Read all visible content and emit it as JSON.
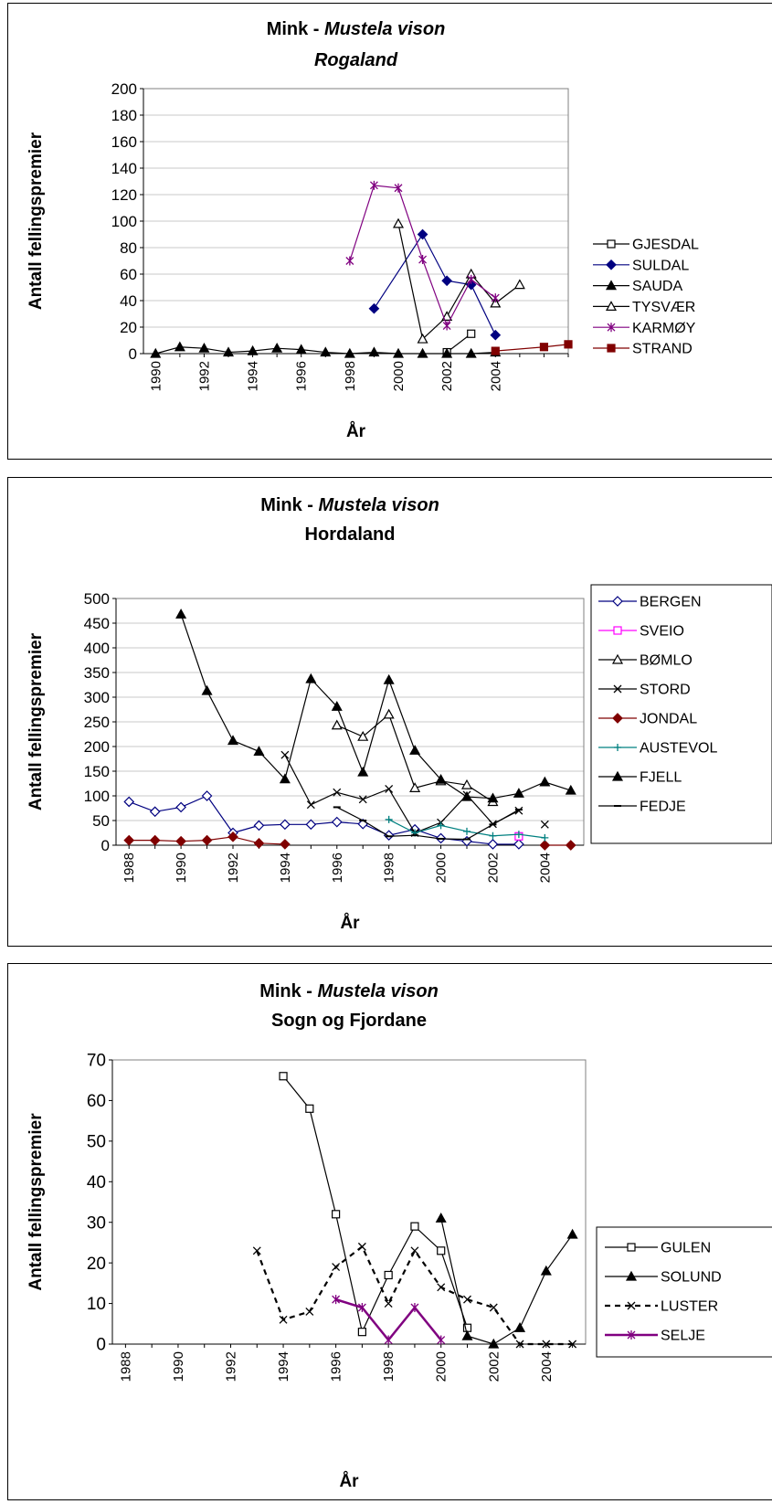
{
  "chart_data": [
    {
      "type": "line",
      "title_prefix": "Mink - ",
      "title_species": "Mustela vison",
      "subtitle": "Rogaland",
      "subtitle_italic": true,
      "xlabel": "År",
      "ylabel": "Antall fellingspremier",
      "xlim": [
        1989.5,
        2007
      ],
      "ylim": [
        0,
        200
      ],
      "yticks": [
        0,
        20,
        40,
        60,
        80,
        100,
        120,
        140,
        160,
        180,
        200
      ],
      "xticks": [
        1990,
        1992,
        1994,
        1996,
        1998,
        2000,
        2002,
        2004
      ],
      "grid": true,
      "legend_position": "right",
      "series": [
        {
          "name": "GJESDAL",
          "color": "#000000",
          "marker": "square-open",
          "x": [
            2002,
            2003
          ],
          "y": [
            1,
            15
          ]
        },
        {
          "name": "SULDAL",
          "color": "#000080",
          "marker": "diamond-filled",
          "x": [
            1999,
            2001,
            2002,
            2003,
            2004
          ],
          "y": [
            34,
            90,
            55,
            52,
            14
          ]
        },
        {
          "name": "SAUDA",
          "color": "#000000",
          "marker": "triangle-filled",
          "x": [
            1990,
            1991,
            1992,
            1993,
            1994,
            1995,
            1996,
            1997,
            1998,
            1999,
            2000,
            2001,
            2002,
            2003,
            2004
          ],
          "y": [
            0,
            5,
            4,
            1,
            2,
            4,
            3,
            1,
            0,
            1,
            0,
            0,
            0,
            0,
            1
          ]
        },
        {
          "name": "TYSVÆR",
          "color": "#000000",
          "marker": "triangle-open",
          "x": [
            2000,
            2001,
            2002,
            2003,
            2004,
            2005
          ],
          "y": [
            98,
            11,
            28,
            60,
            38,
            52
          ]
        },
        {
          "name": "KARMØY",
          "color": "#800080",
          "marker": "asterisk",
          "x": [
            1998,
            1999,
            2000,
            2001,
            2002,
            2003,
            2004
          ],
          "y": [
            70,
            127,
            125,
            71,
            21,
            56,
            42
          ]
        },
        {
          "name": "STRAND",
          "color": "#800000",
          "marker": "square-filled",
          "x": [
            2004,
            2006,
            2007
          ],
          "y": [
            2,
            5,
            7
          ]
        }
      ]
    },
    {
      "type": "line",
      "title_prefix": "Mink - ",
      "title_species": "Mustela vison",
      "subtitle": "Hordaland",
      "subtitle_italic": false,
      "xlabel": "År",
      "ylabel": "Antall fellingspremier",
      "xlim": [
        1987.5,
        2005.5
      ],
      "ylim": [
        0,
        500
      ],
      "yticks": [
        0,
        50,
        100,
        150,
        200,
        250,
        300,
        350,
        400,
        450,
        500
      ],
      "xticks": [
        1988,
        1990,
        1992,
        1994,
        1996,
        1998,
        2000,
        2002,
        2004
      ],
      "grid": true,
      "legend_position": "right",
      "series": [
        {
          "name": "BERGEN",
          "color": "#000080",
          "marker": "diamond-open",
          "x": [
            1988,
            1989,
            1990,
            1991,
            1992,
            1993,
            1994,
            1995,
            1996,
            1997,
            1998,
            1999,
            2000,
            2001,
            2002,
            2003
          ],
          "y": [
            88,
            68,
            77,
            100,
            25,
            40,
            42,
            42,
            47,
            43,
            20,
            32,
            14,
            8,
            2,
            2
          ]
        },
        {
          "name": "SVEIO",
          "color": "#FF00FF",
          "marker": "square-open",
          "x": [
            2003
          ],
          "y": [
            18
          ]
        },
        {
          "name": "BØMLO",
          "color": "#000000",
          "marker": "triangle-open",
          "x": [
            1996,
            1997,
            1998,
            1999,
            2000,
            2001,
            2002
          ],
          "y": [
            243,
            220,
            265,
            116,
            130,
            122,
            88
          ]
        },
        {
          "name": "STORD",
          "color": "#000000",
          "marker": "x",
          "x": [
            1994,
            1995,
            1996,
            1997,
            1998,
            1999,
            2000,
            2001,
            2002,
            2003
          ],
          "y": [
            183,
            82,
            107,
            93,
            114,
            25,
            46,
            102,
            43,
            70
          ],
          "x2": [
            2004
          ],
          "y2": [
            42
          ]
        },
        {
          "name": "JONDAL",
          "color": "#800000",
          "marker": "diamond-filled",
          "x": [
            1988,
            1989,
            1990,
            1991,
            1992,
            1993,
            1994
          ],
          "y": [
            10,
            10,
            8,
            10,
            17,
            4,
            2
          ],
          "x2": [
            2004,
            2005
          ],
          "y2": [
            0,
            0
          ]
        },
        {
          "name": "AUSTEVOL",
          "color": "#008080",
          "marker": "plus",
          "x": [
            1998,
            1999,
            2000,
            2001,
            2002,
            2003,
            2004
          ],
          "y": [
            52,
            25,
            40,
            28,
            19,
            22,
            15
          ]
        },
        {
          "name": "FJELL",
          "color": "#000000",
          "marker": "triangle-filled",
          "x": [
            1990,
            1991,
            1992,
            1993,
            1994,
            1995,
            1996,
            1997,
            1998,
            1999,
            2000,
            2001,
            2002,
            2003,
            2004,
            2005
          ],
          "y": [
            468,
            313,
            212,
            190,
            134,
            337,
            281,
            148,
            335,
            192,
            133,
            98,
            95,
            105,
            128,
            111
          ]
        },
        {
          "name": "FEDJE",
          "color": "#000000",
          "marker": "dash",
          "x": [
            1996,
            1997,
            1998,
            1999,
            2000,
            2001,
            2002,
            2003
          ],
          "y": [
            77,
            50,
            18,
            20,
            13,
            12,
            42,
            72
          ]
        }
      ]
    },
    {
      "type": "line",
      "title_prefix": "Mink - ",
      "title_species": "Mustela vison",
      "subtitle": "Sogn og Fjordane",
      "subtitle_italic": false,
      "xlabel": "År",
      "ylabel": "Antall fellingspremier",
      "xlim": [
        1987.5,
        2005.5
      ],
      "ylim": [
        0,
        70
      ],
      "yticks": [
        0,
        10,
        20,
        30,
        40,
        50,
        60,
        70
      ],
      "xticks": [
        1988,
        1990,
        1992,
        1994,
        1996,
        1998,
        2000,
        2002,
        2004
      ],
      "grid": false,
      "legend_position": "right",
      "series": [
        {
          "name": "GULEN",
          "color": "#000000",
          "marker": "square-open",
          "x": [
            1994,
            1995,
            1996,
            1997,
            1998,
            1999,
            2000,
            2001
          ],
          "y": [
            66,
            58,
            32,
            3,
            17,
            29,
            23,
            4
          ]
        },
        {
          "name": "SOLUND",
          "color": "#000000",
          "marker": "triangle-filled",
          "x": [
            2000,
            2001,
            2002,
            2003,
            2004,
            2005
          ],
          "y": [
            31,
            2,
            0,
            4,
            18,
            27
          ]
        },
        {
          "name": "LUSTER",
          "color": "#000000",
          "marker": "x",
          "dashed": true,
          "x": [
            1993,
            1994,
            1995,
            1996,
            1997,
            1998,
            1999,
            2000,
            2001,
            2002,
            2003,
            2004,
            2005
          ],
          "y": [
            23,
            6,
            8,
            19,
            24,
            10,
            23,
            14,
            11,
            9,
            0,
            0,
            0
          ]
        },
        {
          "name": "SELJE",
          "color": "#800080",
          "marker": "asterisk",
          "thick": true,
          "x": [
            1996,
            1997,
            1998,
            1999,
            2000
          ],
          "y": [
            11,
            9,
            1,
            9,
            1
          ]
        }
      ]
    }
  ]
}
